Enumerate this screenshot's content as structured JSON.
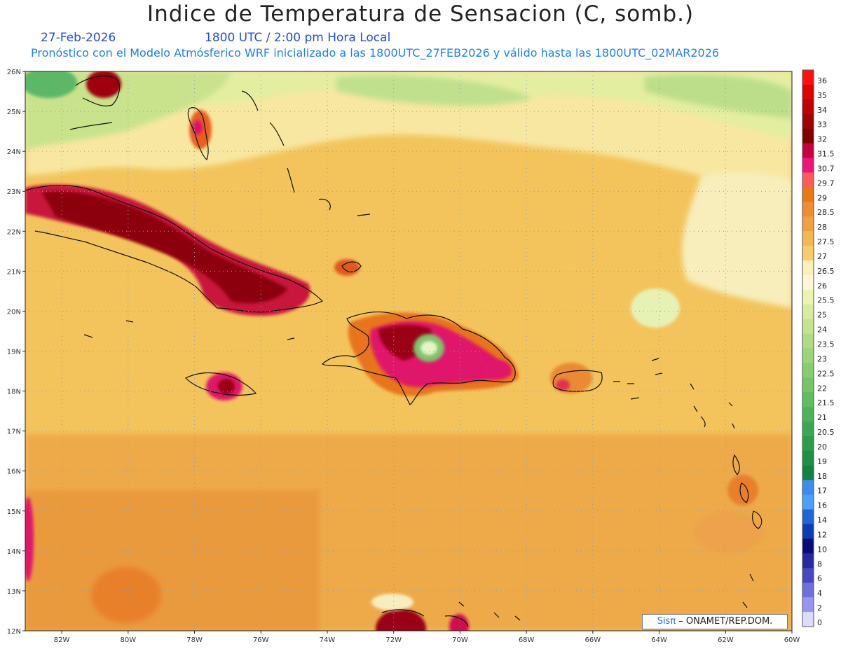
{
  "header": {
    "title": "Indice de Temperatura de Sensacion (C, somb.)",
    "date": "27-Feb-2026",
    "time": "1800 UTC / 2:00 pm Hora Local",
    "model_line": "Pronóstico con el Modelo Atmósferico WRF inicializado a las 1800UTC_27FEB2026 y válido hasta las  1800UTC_02MAR2026"
  },
  "map": {
    "lon_range": [
      -83.1,
      -60
    ],
    "lat_range": [
      12,
      26
    ],
    "lon_ticks": [
      "82W",
      "80W",
      "78W",
      "76W",
      "74W",
      "72W",
      "70W",
      "68W",
      "66W",
      "64W",
      "62W",
      "60W"
    ],
    "lat_ticks": [
      "26N",
      "25N",
      "24N",
      "23N",
      "22N",
      "21N",
      "20N",
      "19N",
      "18N",
      "17N",
      "16N",
      "15N",
      "14N",
      "13N",
      "12N"
    ],
    "grid": "dotted"
  },
  "colorbar": {
    "labels": [
      "36",
      "35",
      "34",
      "33",
      "32",
      "31.5",
      "30.7",
      "29.7",
      "29",
      "28.5",
      "28",
      "27.5",
      "27",
      "26.5",
      "26",
      "25.5",
      "25",
      "24",
      "23.5",
      "23",
      "22.5",
      "22",
      "21.5",
      "21",
      "20.5",
      "20",
      "19",
      "18",
      "17",
      "16",
      "14",
      "12",
      "10",
      "8",
      "6",
      "4",
      "2",
      "0"
    ],
    "colors": [
      "#ff1010",
      "#e00000",
      "#c00000",
      "#a00000",
      "#800000",
      "#c8003c",
      "#f0147a",
      "#ff5a5a",
      "#e87810",
      "#f08c30",
      "#f0a040",
      "#f4b850",
      "#f8cc68",
      "#faf0b8",
      "#fbf6d6",
      "#ecf4b0",
      "#d8eca0",
      "#c4e48c",
      "#b0dc80",
      "#9cd478",
      "#88cc70",
      "#74c468",
      "#60bc60",
      "#4cb458",
      "#3aa852",
      "#2a9c4a",
      "#1c9044",
      "#10843e",
      "#3c8cf0",
      "#4aa0f8",
      "#1e64d8",
      "#0a3cb4",
      "#0a0a78",
      "#2828a0",
      "#4646c0",
      "#6e6edc",
      "#9696f0",
      "#dcdcff"
    ]
  },
  "credit": {
    "brand": "Sis",
    "pi": "π",
    "org": " – ONAMET/REP.DOM."
  }
}
